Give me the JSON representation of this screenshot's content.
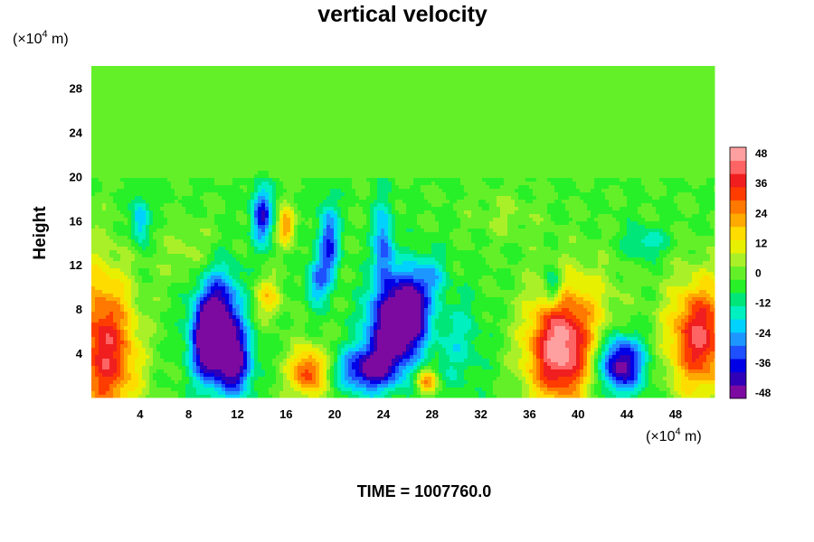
{
  "chart_data": {
    "type": "heatmap",
    "title": "vertical velocity",
    "ylabel": "Height",
    "xlabel": "",
    "x_unit": {
      "prefix": "(×10",
      "exp": "4",
      "suffix": " m)"
    },
    "y_unit": {
      "prefix": "(×10",
      "exp": "4",
      "suffix": " m)"
    },
    "xlim": [
      0,
      51.2
    ],
    "ylim": [
      0,
      30
    ],
    "x_ticks": [
      4,
      8,
      12,
      16,
      20,
      24,
      28,
      32,
      36,
      40,
      44,
      48
    ],
    "y_ticks": [
      4,
      8,
      12,
      16,
      20,
      24,
      28
    ],
    "colorbar": {
      "ticks": [
        48,
        36,
        24,
        12,
        0,
        -12,
        -24,
        -36,
        -48
      ],
      "range": [
        -48,
        48
      ],
      "colors": [
        "#7d0aa0",
        "#2f00b8",
        "#0000e6",
        "#1e50ff",
        "#1e96ff",
        "#00d2ff",
        "#00f0c0",
        "#00e678",
        "#28f028",
        "#64f028",
        "#aaf028",
        "#e6f000",
        "#ffdc00",
        "#ffaa00",
        "#ff7800",
        "#ff3c00",
        "#f01e1e",
        "#ff6464",
        "#ffa0a0"
      ]
    },
    "field": {
      "background": 0,
      "lower_background": -3,
      "lower_top": 20,
      "features": [
        {
          "x": 1.5,
          "y": 3.5,
          "sx": 1.8,
          "sy": 4.5,
          "v": 30
        },
        {
          "x": 0.5,
          "y": 7,
          "sx": 1.5,
          "sy": 5,
          "v": 14
        },
        {
          "x": 10.5,
          "y": 6.5,
          "sx": 1.3,
          "sy": 3.5,
          "v": -46
        },
        {
          "x": 12.0,
          "y": 3.0,
          "sx": 0.9,
          "sy": 2.0,
          "v": -32
        },
        {
          "x": 9.5,
          "y": 5.0,
          "sx": 1.0,
          "sy": 2.5,
          "v": -30
        },
        {
          "x": 14.0,
          "y": 16.5,
          "sx": 0.6,
          "sy": 1.8,
          "v": -34
        },
        {
          "x": 4.0,
          "y": 16.0,
          "sx": 0.5,
          "sy": 1.5,
          "v": -22
        },
        {
          "x": 16.0,
          "y": 15.5,
          "sx": 0.5,
          "sy": 1.2,
          "v": 26
        },
        {
          "x": 14.5,
          "y": 9.0,
          "sx": 0.8,
          "sy": 1.3,
          "v": 18
        },
        {
          "x": 17.8,
          "y": 2.3,
          "sx": 1.1,
          "sy": 1.6,
          "v": 34
        },
        {
          "x": 19.5,
          "y": 14.0,
          "sx": 0.6,
          "sy": 2.5,
          "v": -30
        },
        {
          "x": 18.5,
          "y": 10.5,
          "sx": 0.6,
          "sy": 1.5,
          "v": -22
        },
        {
          "x": 24.5,
          "y": 6.0,
          "sx": 1.4,
          "sy": 2.8,
          "v": -46
        },
        {
          "x": 22.5,
          "y": 2.5,
          "sx": 1.6,
          "sy": 1.4,
          "v": -36
        },
        {
          "x": 26.3,
          "y": 8.0,
          "sx": 1.0,
          "sy": 2.5,
          "v": -42
        },
        {
          "x": 24.0,
          "y": 13.5,
          "sx": 0.6,
          "sy": 3.0,
          "v": -26
        },
        {
          "x": 28.0,
          "y": 11.0,
          "sx": 0.9,
          "sy": 1.5,
          "v": -14
        },
        {
          "x": 27.5,
          "y": 1.5,
          "sx": 0.6,
          "sy": 0.8,
          "v": 28
        },
        {
          "x": 30.0,
          "y": 5.0,
          "sx": 1.5,
          "sy": 3.0,
          "v": -12
        },
        {
          "x": 38.5,
          "y": 4.0,
          "sx": 1.9,
          "sy": 3.3,
          "v": 48
        },
        {
          "x": 43.5,
          "y": 3.0,
          "sx": 1.3,
          "sy": 1.8,
          "v": -46
        },
        {
          "x": 50.0,
          "y": 5.5,
          "sx": 1.8,
          "sy": 3.5,
          "v": 42
        },
        {
          "x": 38.0,
          "y": 10.0,
          "sx": 0.5,
          "sy": 1.2,
          "v": -24
        },
        {
          "x": 45.5,
          "y": 14.0,
          "sx": 1.2,
          "sy": 1.0,
          "v": -14
        },
        {
          "x": 40.0,
          "y": 8.5,
          "sx": 2.5,
          "sy": 3.0,
          "v": 12
        },
        {
          "x": 8.5,
          "y": 13.0,
          "sx": 2.0,
          "sy": 2.0,
          "v": 8
        },
        {
          "x": 34.0,
          "y": 16.5,
          "sx": 2.0,
          "sy": 1.5,
          "v": 6
        }
      ]
    }
  },
  "footer": {
    "label": "TIME = 1007760.0"
  }
}
